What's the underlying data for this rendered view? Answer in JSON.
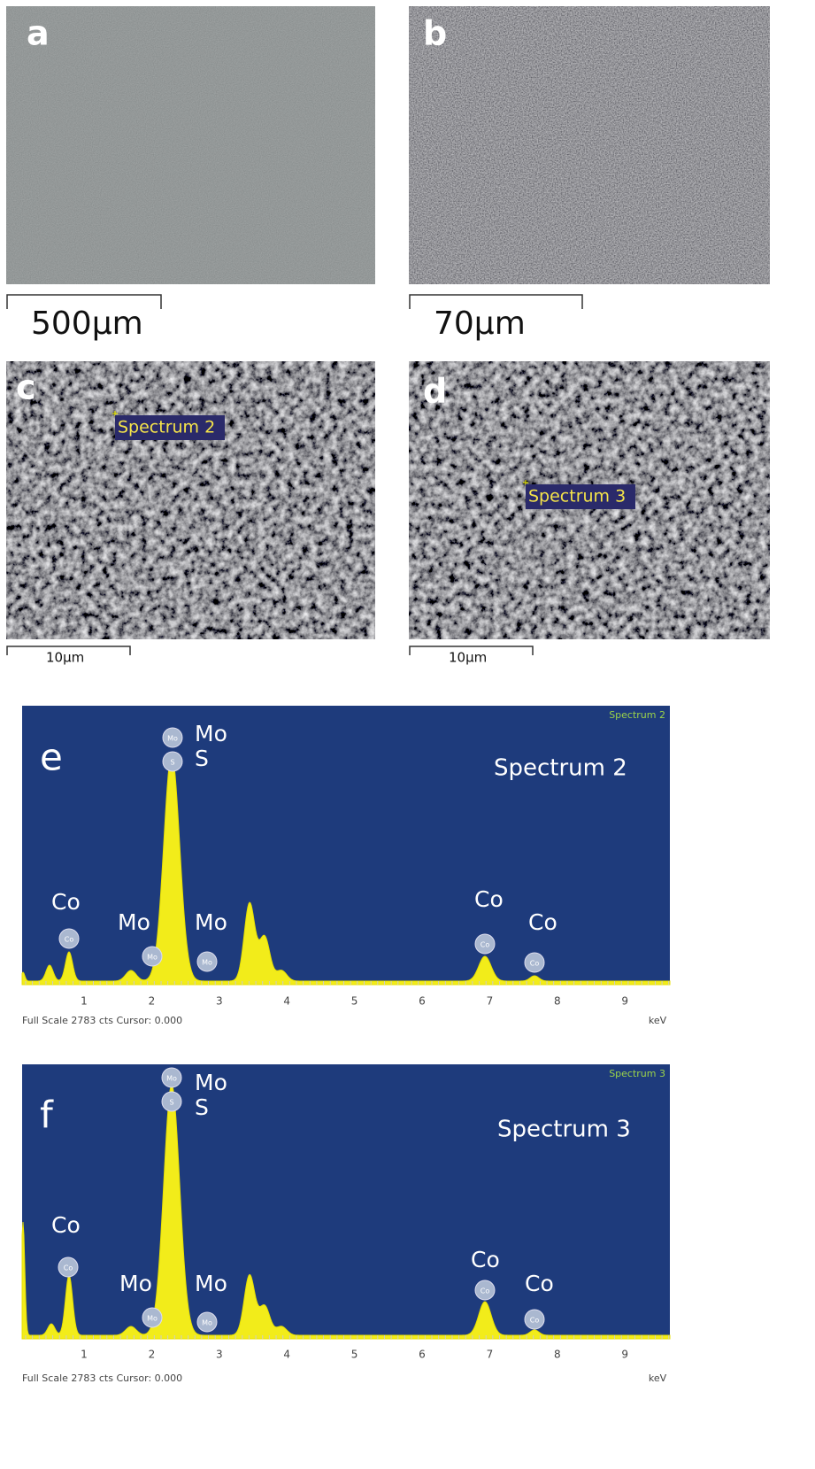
{
  "panels": [
    {
      "label": "a",
      "scale_bar": "500µm"
    },
    {
      "label": "b",
      "scale_bar": "70µm"
    },
    {
      "label": "c",
      "scale_bar": "10µm",
      "marker": "Spectrum 2"
    },
    {
      "label": "d",
      "scale_bar": "10µm",
      "marker": "Spectrum 3"
    }
  ],
  "spectra": [
    {
      "label": "e",
      "title": "Spectrum 2",
      "corner_title": "Spectrum 2",
      "x_ticks": [
        "1",
        "2",
        "3",
        "4",
        "5",
        "6",
        "7",
        "8",
        "9"
      ],
      "unit": "keV",
      "footer": "Full Scale 2783 cts Cursor: 0.000",
      "peak_labels": [
        "Mo",
        "S",
        "Co",
        "Mo",
        "Mo",
        "Co",
        "Co"
      ],
      "markers": [
        "Mo",
        "S",
        "Co",
        "Mo",
        "Mo",
        "Co",
        "Co"
      ]
    },
    {
      "label": "f",
      "title": "Spectrum 3",
      "corner_title": "Spectrum 3",
      "x_ticks": [
        "1",
        "2",
        "3",
        "4",
        "5",
        "6",
        "7",
        "8",
        "9"
      ],
      "unit": "keV",
      "footer": "Full Scale 2783 cts Cursor: 0.000",
      "peak_labels": [
        "Mo",
        "S",
        "Co",
        "Mo",
        "Mo",
        "Co",
        "Co"
      ],
      "markers": [
        "Mo",
        "S",
        "Co",
        "Mo",
        "Mo",
        "Co",
        "Co"
      ]
    }
  ]
}
